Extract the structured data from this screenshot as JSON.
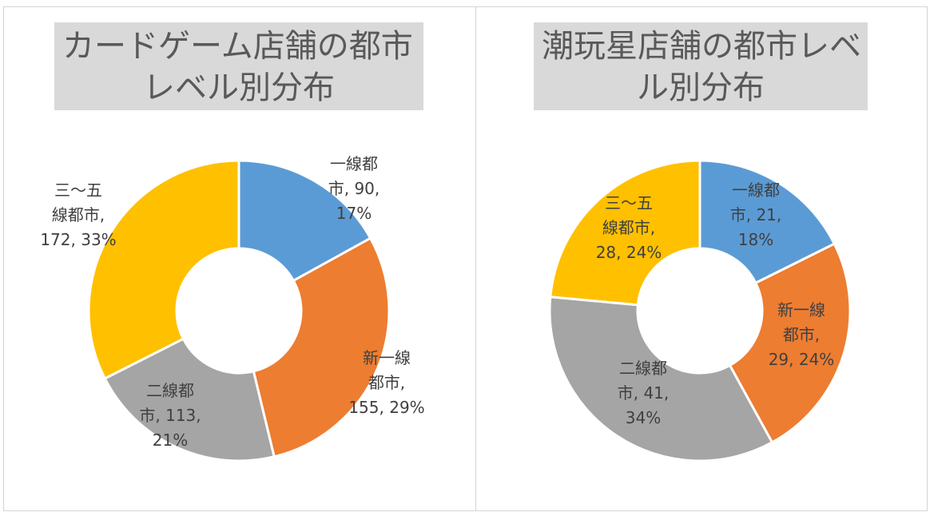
{
  "chart_data": [
    {
      "type": "pie",
      "title_lines": [
        "カードゲーム店舗の都市",
        "レベル別分布"
      ],
      "slices": [
        {
          "label_lines": [
            "一線都",
            "市, 90,",
            "17%"
          ],
          "value": 90,
          "percent": "17%",
          "color": "#5b9bd5"
        },
        {
          "label_lines": [
            "新一線",
            "都市,",
            "155, 29%"
          ],
          "value": 155,
          "percent": "29%",
          "color": "#ed7d31"
        },
        {
          "label_lines": [
            "二線都",
            "市, 113,",
            "21%"
          ],
          "value": 113,
          "percent": "21%",
          "color": "#a5a5a5"
        },
        {
          "label_lines": [
            "三～五",
            "線都市,",
            "172, 33%"
          ],
          "value": 172,
          "percent": "33%",
          "color": "#ffc000"
        }
      ]
    },
    {
      "type": "pie",
      "title_lines": [
        "潮玩星店舗の都市レベ",
        "ル別分布"
      ],
      "slices": [
        {
          "label_lines": [
            "一線都",
            "市, 21,",
            "18%"
          ],
          "value": 21,
          "percent": "18%",
          "color": "#5b9bd5"
        },
        {
          "label_lines": [
            "新一線",
            "都市,",
            "29, 24%"
          ],
          "value": 29,
          "percent": "24%",
          "color": "#ed7d31"
        },
        {
          "label_lines": [
            "二線都",
            "市, 41,",
            "34%"
          ],
          "value": 41,
          "percent": "34%",
          "color": "#a5a5a5"
        },
        {
          "label_lines": [
            "三～五",
            "線都市,",
            "28, 24%"
          ],
          "value": 28,
          "percent": "24%",
          "color": "#ffc000"
        }
      ]
    }
  ]
}
